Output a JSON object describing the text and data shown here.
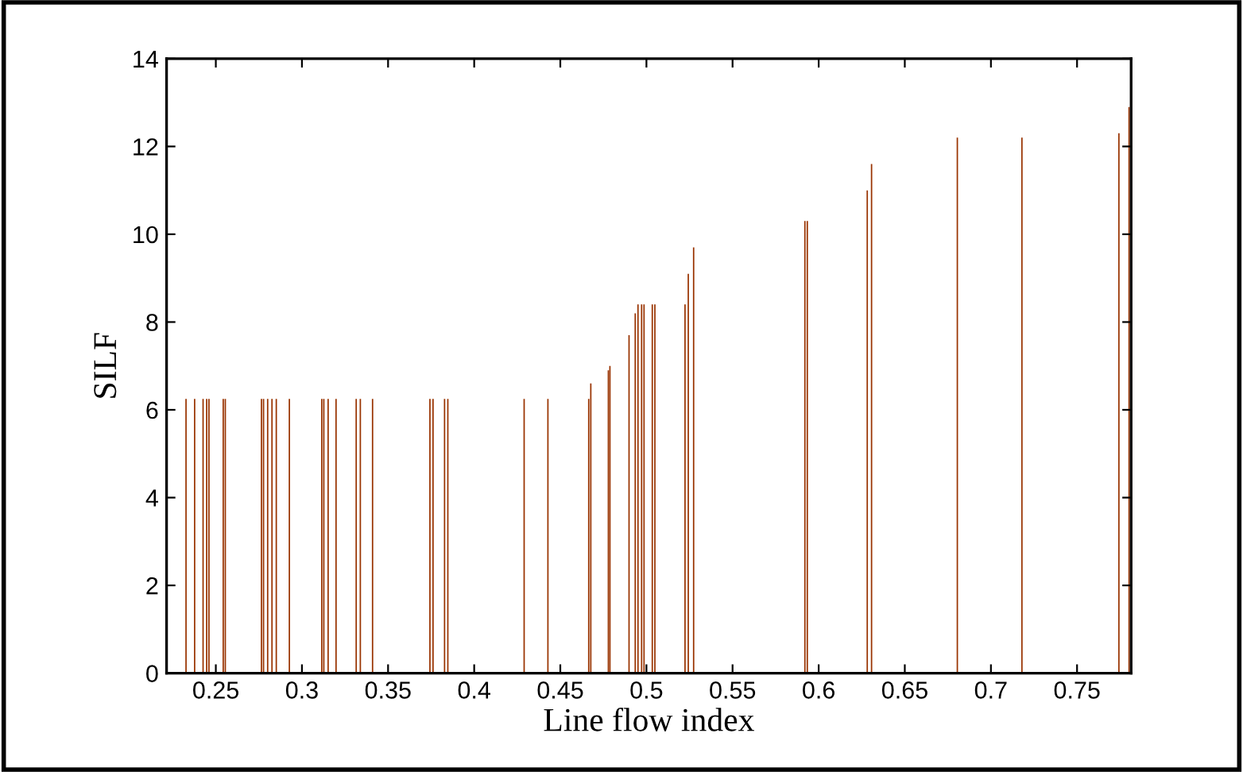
{
  "chart_data": {
    "type": "bar",
    "xlabel": "Line flow index",
    "ylabel": "SILF",
    "x": [
      0.2327,
      0.2377,
      0.2426,
      0.2447,
      0.246,
      0.2543,
      0.2555,
      0.2765,
      0.2777,
      0.2801,
      0.2826,
      0.2851,
      0.2927,
      0.3115,
      0.3127,
      0.3152,
      0.3198,
      0.3315,
      0.3339,
      0.341,
      0.3743,
      0.3761,
      0.3828,
      0.3847,
      0.429,
      0.4428,
      0.4665,
      0.4677,
      0.4779,
      0.4788,
      0.4899,
      0.4935,
      0.4951,
      0.4972,
      0.4986,
      0.5034,
      0.5049,
      0.5224,
      0.5243,
      0.5274,
      0.592,
      0.5934,
      0.6282,
      0.6307,
      0.6805,
      0.718,
      0.7743,
      0.7802
    ],
    "values": [
      6.25,
      6.25,
      6.25,
      6.25,
      6.25,
      6.25,
      6.25,
      6.25,
      6.25,
      6.25,
      6.25,
      6.25,
      6.25,
      6.25,
      6.25,
      6.25,
      6.25,
      6.25,
      6.25,
      6.25,
      6.25,
      6.25,
      6.25,
      6.25,
      6.25,
      6.25,
      6.25,
      6.6,
      6.9,
      7.0,
      7.7,
      8.2,
      8.4,
      8.4,
      8.4,
      8.4,
      8.4,
      8.4,
      9.1,
      9.7,
      10.3,
      10.3,
      11.0,
      11.6,
      12.2,
      12.2,
      12.3,
      12.9
    ],
    "color": "#993300",
    "xlim": [
      0.2214,
      0.7814
    ],
    "xticks": [
      0.25,
      0.3,
      0.35,
      0.4,
      0.45,
      0.5,
      0.55,
      0.6,
      0.65,
      0.7,
      0.75
    ],
    "ylim": [
      0,
      14
    ],
    "yticks": [
      0,
      2,
      4,
      6,
      8,
      10,
      12,
      14
    ],
    "grid": false
  }
}
